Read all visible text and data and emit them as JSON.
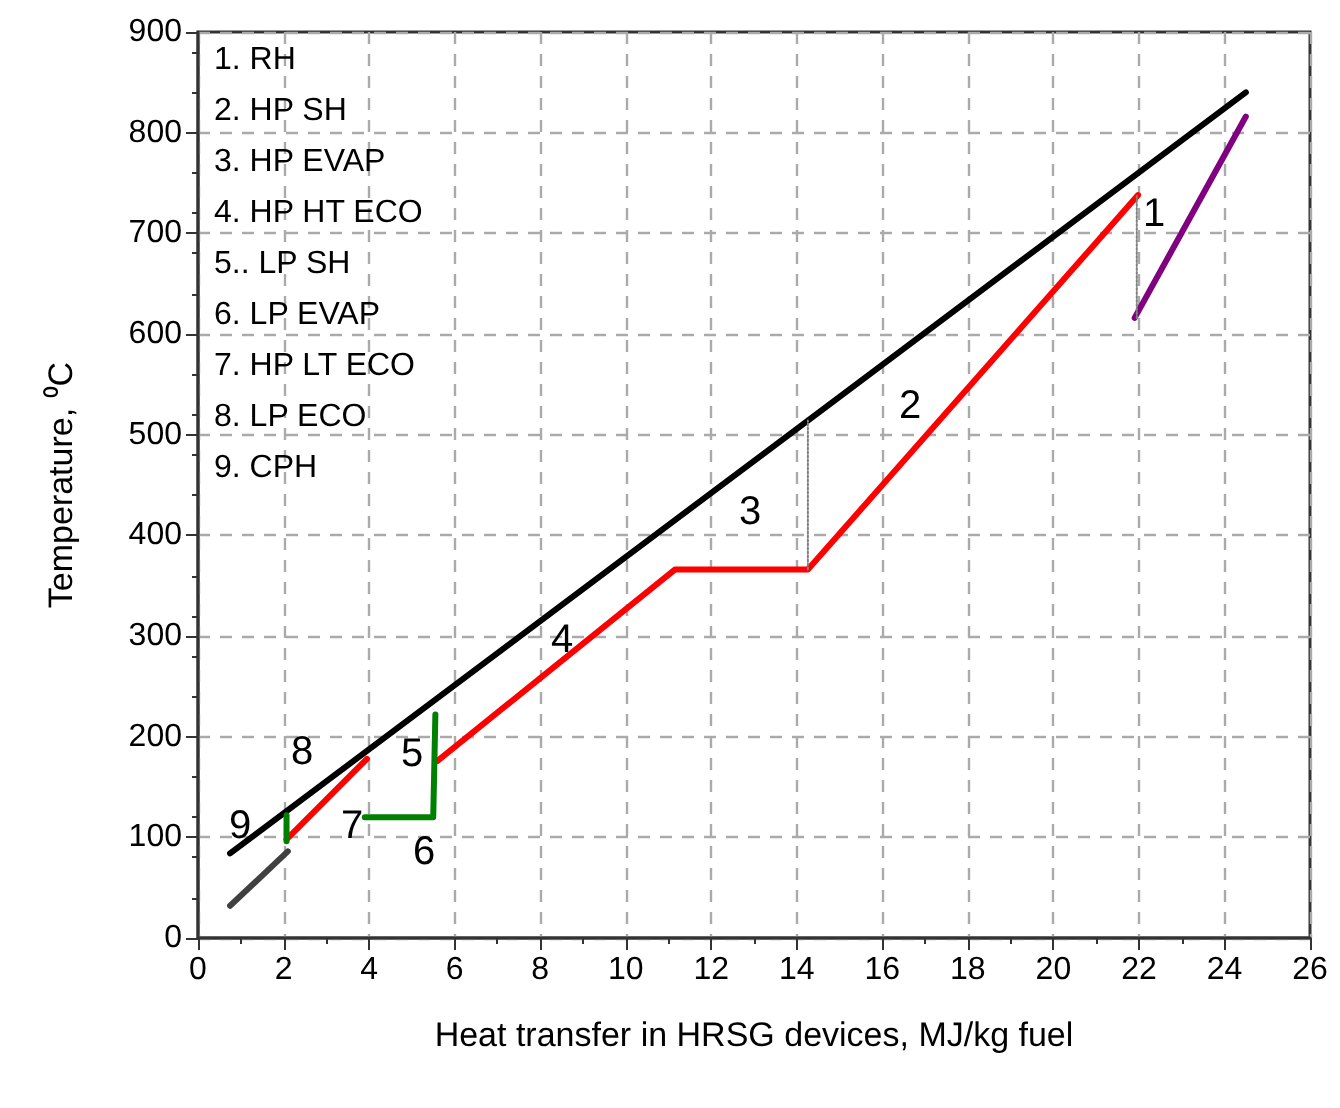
{
  "chart_data": {
    "type": "line",
    "xlabel": "Heat transfer in HRSG devices, MJ/kg fuel",
    "ylabel": "Temperature, ⁰C",
    "xlim": [
      0,
      26
    ],
    "xticks": [
      0,
      2,
      4,
      6,
      8,
      10,
      12,
      14,
      16,
      18,
      20,
      22,
      24,
      26
    ],
    "ylim": [
      0,
      900
    ],
    "yticks": [
      0,
      100,
      200,
      300,
      400,
      500,
      600,
      700,
      800,
      900
    ],
    "grid": true,
    "marker": "none",
    "line_style": "solid",
    "series": [
      {
        "color": "#000000",
        "x": [
          0.75,
          24.5
        ],
        "values": [
          84,
          840
        ]
      },
      {
        "color": "#ff0000",
        "x": [
          2.07,
          3.95
        ],
        "values": [
          98,
          178
        ]
      },
      {
        "color": "#ff0000",
        "x": [
          5.6,
          11.15,
          14.26,
          21.98
        ],
        "values": [
          176,
          366,
          366,
          738
        ]
      },
      {
        "color": "#008000",
        "x": [
          2.07,
          2.07
        ],
        "values": [
          96,
          122
        ]
      },
      {
        "color": "#008000",
        "x": [
          3.9,
          5.5,
          5.55
        ],
        "values": [
          120,
          120,
          222
        ]
      },
      {
        "color": "#404040",
        "x": [
          0.75,
          2.1
        ],
        "values": [
          32,
          86
        ]
      },
      {
        "color": "#800080",
        "x": [
          21.9,
          24.5
        ],
        "values": [
          616,
          816
        ]
      },
      {
        "color": "#808080",
        "line_style": "dotted",
        "x": [
          14.26,
          14.26
        ],
        "values": [
          366,
          514
        ]
      },
      {
        "color": "#808080",
        "line_style": "dotted",
        "x": [
          21.95,
          21.95
        ],
        "values": [
          616,
          738
        ]
      }
    ],
    "annotations": [
      "1. RH",
      "2. HP SH",
      "3. HP EVAP",
      "4. HP HT ECO",
      "5.. LP SH",
      "6. LP EVAP",
      "7. HP LT ECO",
      "8. LP ECO",
      "9. CPH",
      "1",
      "2",
      "3",
      "4",
      "5",
      "6",
      "7",
      "8",
      "9"
    ]
  }
}
